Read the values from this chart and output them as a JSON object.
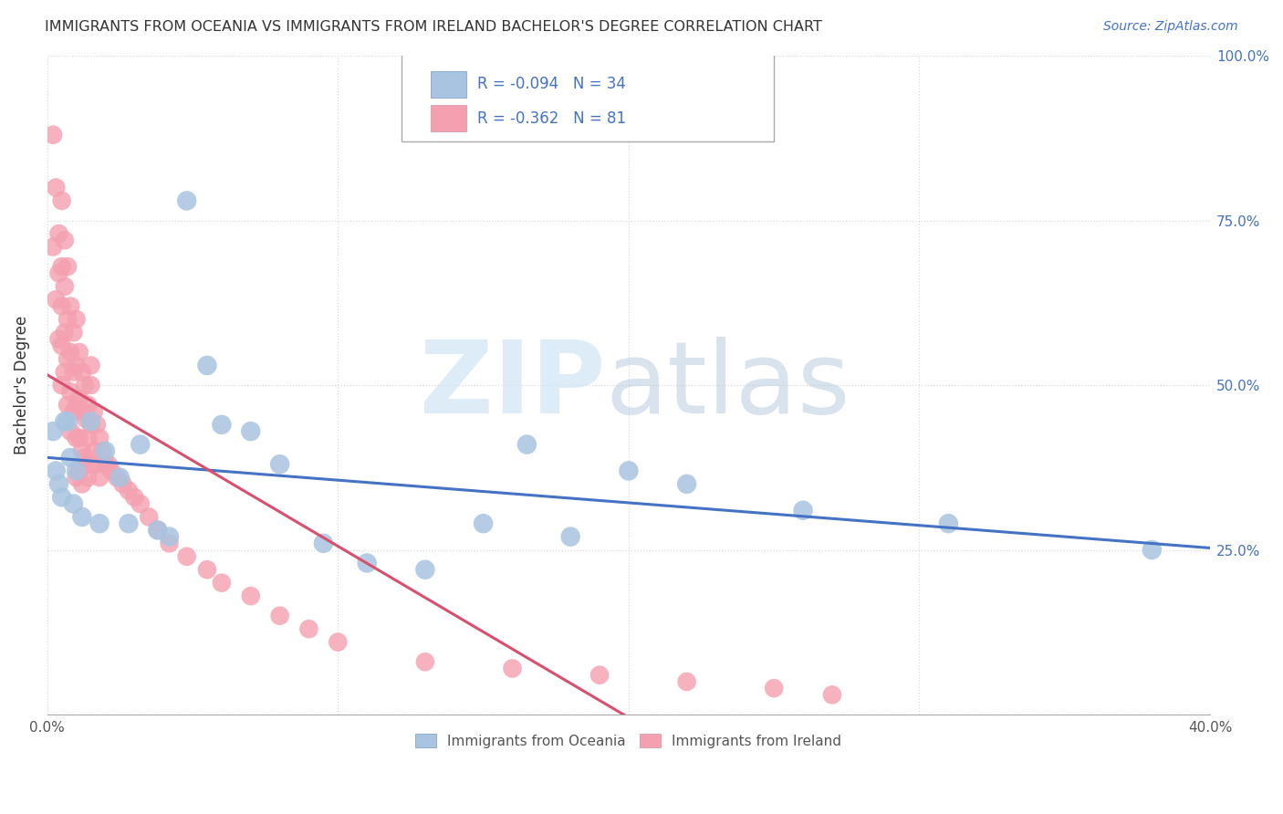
{
  "title": "IMMIGRANTS FROM OCEANIA VS IMMIGRANTS FROM IRELAND BACHELOR'S DEGREE CORRELATION CHART",
  "source": "Source: ZipAtlas.com",
  "ylabel": "Bachelor's Degree",
  "xlim": [
    0.0,
    0.4
  ],
  "ylim": [
    0.0,
    1.0
  ],
  "xtick_vals": [
    0.0,
    0.1,
    0.2,
    0.3,
    0.4
  ],
  "xtick_labels": [
    "0.0%",
    "",
    "",
    "",
    "40.0%"
  ],
  "ytick_vals": [
    0.0,
    0.25,
    0.5,
    0.75,
    1.0
  ],
  "ytick_labels_right": [
    "",
    "25.0%",
    "50.0%",
    "75.0%",
    "100.0%"
  ],
  "legend_oceania": "Immigrants from Oceania",
  "legend_ireland": "Immigrants from Ireland",
  "R_oceania": -0.094,
  "N_oceania": 34,
  "R_ireland": -0.362,
  "N_ireland": 81,
  "color_oceania": "#a8c4e0",
  "color_ireland": "#f4a0b0",
  "line_color_oceania": "#4472c4",
  "line_color_ireland": "#d94f6e",
  "oceania_x": [
    0.002,
    0.003,
    0.004,
    0.005,
    0.006,
    0.007,
    0.008,
    0.009,
    0.01,
    0.012,
    0.015,
    0.018,
    0.02,
    0.025,
    0.028,
    0.032,
    0.038,
    0.042,
    0.048,
    0.055,
    0.06,
    0.07,
    0.08,
    0.095,
    0.11,
    0.13,
    0.15,
    0.165,
    0.18,
    0.2,
    0.22,
    0.26,
    0.31,
    0.38
  ],
  "oceania_y": [
    0.43,
    0.37,
    0.35,
    0.33,
    0.445,
    0.445,
    0.39,
    0.32,
    0.37,
    0.3,
    0.445,
    0.29,
    0.4,
    0.36,
    0.29,
    0.41,
    0.28,
    0.27,
    0.78,
    0.53,
    0.44,
    0.43,
    0.38,
    0.26,
    0.23,
    0.22,
    0.29,
    0.41,
    0.27,
    0.37,
    0.35,
    0.31,
    0.29,
    0.25
  ],
  "ireland_x": [
    0.002,
    0.002,
    0.003,
    0.003,
    0.004,
    0.004,
    0.004,
    0.005,
    0.005,
    0.005,
    0.005,
    0.005,
    0.006,
    0.006,
    0.006,
    0.006,
    0.007,
    0.007,
    0.007,
    0.007,
    0.008,
    0.008,
    0.008,
    0.008,
    0.009,
    0.009,
    0.009,
    0.01,
    0.01,
    0.01,
    0.01,
    0.01,
    0.011,
    0.011,
    0.011,
    0.011,
    0.012,
    0.012,
    0.012,
    0.012,
    0.013,
    0.013,
    0.013,
    0.014,
    0.014,
    0.014,
    0.015,
    0.015,
    0.015,
    0.016,
    0.016,
    0.017,
    0.017,
    0.018,
    0.018,
    0.019,
    0.02,
    0.021,
    0.022,
    0.024,
    0.026,
    0.028,
    0.03,
    0.032,
    0.035,
    0.038,
    0.042,
    0.048,
    0.055,
    0.06,
    0.07,
    0.08,
    0.09,
    0.1,
    0.13,
    0.16,
    0.19,
    0.22,
    0.25,
    0.27,
    0.015
  ],
  "ireland_y": [
    0.88,
    0.71,
    0.8,
    0.63,
    0.73,
    0.67,
    0.57,
    0.78,
    0.68,
    0.62,
    0.56,
    0.5,
    0.72,
    0.65,
    0.58,
    0.52,
    0.68,
    0.6,
    0.54,
    0.47,
    0.62,
    0.55,
    0.49,
    0.43,
    0.58,
    0.52,
    0.46,
    0.6,
    0.53,
    0.47,
    0.42,
    0.36,
    0.55,
    0.48,
    0.42,
    0.37,
    0.52,
    0.46,
    0.4,
    0.35,
    0.5,
    0.45,
    0.39,
    0.47,
    0.42,
    0.36,
    0.5,
    0.44,
    0.38,
    0.46,
    0.4,
    0.44,
    0.38,
    0.42,
    0.36,
    0.4,
    0.38,
    0.38,
    0.37,
    0.36,
    0.35,
    0.34,
    0.33,
    0.32,
    0.3,
    0.28,
    0.26,
    0.24,
    0.22,
    0.2,
    0.18,
    0.15,
    0.13,
    0.11,
    0.08,
    0.07,
    0.06,
    0.05,
    0.04,
    0.03,
    0.53
  ]
}
